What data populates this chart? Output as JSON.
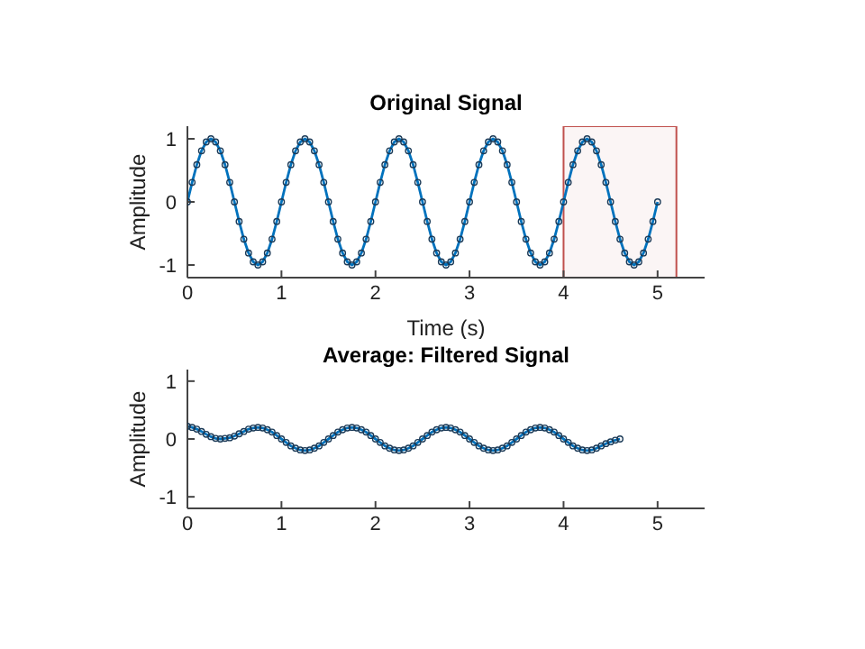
{
  "chart_data": [
    {
      "type": "line",
      "title": "Original Signal",
      "xlabel": "Time (s)",
      "ylabel": "Amplitude",
      "marker": "circle",
      "line_style": "solid",
      "x": [
        0,
        0.05,
        0.1,
        0.15,
        0.2,
        0.25,
        0.3,
        0.35,
        0.4,
        0.45,
        0.5,
        0.55,
        0.6,
        0.65,
        0.7,
        0.75,
        0.8,
        0.85,
        0.9,
        0.95,
        1,
        1.05,
        1.1,
        1.15,
        1.2,
        1.25,
        1.3,
        1.35,
        1.4,
        1.45,
        1.5,
        1.55,
        1.6,
        1.65,
        1.7,
        1.75,
        1.8,
        1.85,
        1.9,
        1.95,
        2,
        2.05,
        2.1,
        2.15,
        2.2,
        2.25,
        2.3,
        2.35,
        2.4,
        2.45,
        2.5,
        2.55,
        2.6,
        2.65,
        2.7,
        2.75,
        2.8,
        2.85,
        2.9,
        2.95,
        3,
        3.05,
        3.1,
        3.15,
        3.2,
        3.25,
        3.3,
        3.35,
        3.4,
        3.45,
        3.5,
        3.55,
        3.6,
        3.65,
        3.7,
        3.75,
        3.8,
        3.85,
        3.9,
        3.95,
        4,
        4.05,
        4.1,
        4.15,
        4.2,
        4.25,
        4.3,
        4.35,
        4.4,
        4.45,
        4.5,
        4.55,
        4.6,
        4.65,
        4.7,
        4.75,
        4.8,
        4.85,
        4.9,
        4.95,
        5
      ],
      "series": [
        {
          "color": "#0072bd",
          "values": [
            0,
            0.31,
            0.59,
            0.81,
            0.95,
            1,
            0.95,
            0.81,
            0.59,
            0.31,
            0,
            -0.31,
            -0.59,
            -0.81,
            -0.95,
            -1,
            -0.95,
            -0.81,
            -0.59,
            -0.31,
            0,
            0.31,
            0.59,
            0.81,
            0.95,
            1,
            0.95,
            0.81,
            0.59,
            0.31,
            0,
            -0.31,
            -0.59,
            -0.81,
            -0.95,
            -1,
            -0.95,
            -0.81,
            -0.59,
            -0.31,
            0,
            0.31,
            0.59,
            0.81,
            0.95,
            1,
            0.95,
            0.81,
            0.59,
            0.31,
            0,
            -0.31,
            -0.59,
            -0.81,
            -0.95,
            -1,
            -0.95,
            -0.81,
            -0.59,
            -0.31,
            0,
            0.31,
            0.59,
            0.81,
            0.95,
            1,
            0.95,
            0.81,
            0.59,
            0.31,
            0,
            -0.31,
            -0.59,
            -0.81,
            -0.95,
            -1,
            -0.95,
            -0.81,
            -0.59,
            -0.31,
            0,
            0.31,
            0.59,
            0.81,
            0.95,
            1,
            0.95,
            0.81,
            0.59,
            0.31,
            0,
            -0.31,
            -0.59,
            -0.81,
            -0.95,
            -1,
            -0.95,
            -0.81,
            -0.59,
            -0.31,
            0
          ]
        }
      ],
      "xlim": [
        0,
        5.5
      ],
      "xticks": [
        0,
        1,
        2,
        3,
        4,
        5
      ],
      "ylim": [
        -1.2,
        1.2
      ],
      "yticks": [
        -1,
        0,
        1
      ],
      "bands": [
        {
          "axis": "x",
          "from": 4,
          "to": 5.2,
          "color": "#c0504d"
        }
      ]
    },
    {
      "type": "line",
      "title": "Average: Filtered Signal",
      "ylabel": "Amplitude",
      "marker": "circle",
      "line_style": "solid",
      "x": [
        0,
        0.05,
        0.1,
        0.15,
        0.2,
        0.25,
        0.3,
        0.35,
        0.4,
        0.45,
        0.5,
        0.55,
        0.6,
        0.65,
        0.7,
        0.75,
        0.8,
        0.85,
        0.9,
        0.95,
        1,
        1.05,
        1.1,
        1.15,
        1.2,
        1.25,
        1.3,
        1.35,
        1.4,
        1.45,
        1.5,
        1.55,
        1.6,
        1.65,
        1.7,
        1.75,
        1.8,
        1.85,
        1.9,
        1.95,
        2,
        2.05,
        2.1,
        2.15,
        2.2,
        2.25,
        2.3,
        2.35,
        2.4,
        2.45,
        2.5,
        2.55,
        2.6,
        2.65,
        2.7,
        2.75,
        2.8,
        2.85,
        2.9,
        2.95,
        3,
        3.05,
        3.1,
        3.15,
        3.2,
        3.25,
        3.3,
        3.35,
        3.4,
        3.45,
        3.5,
        3.55,
        3.6,
        3.65,
        3.7,
        3.75,
        3.8,
        3.85,
        3.9,
        3.95,
        4,
        4.05,
        4.1,
        4.15,
        4.2,
        4.25,
        4.3,
        4.35,
        4.4,
        4.45,
        4.5,
        4.55,
        4.6
      ],
      "series": [
        {
          "color": "#0072bd",
          "values": [
            0.22,
            0.2,
            0.17,
            0.13,
            0.08,
            0.04,
            0.01,
            0,
            0.01,
            0.02,
            0.05,
            0.09,
            0.13,
            0.17,
            0.19,
            0.2,
            0.19,
            0.16,
            0.12,
            0.06,
            0,
            -0.06,
            -0.12,
            -0.16,
            -0.19,
            -0.2,
            -0.19,
            -0.16,
            -0.12,
            -0.06,
            0,
            0.06,
            0.12,
            0.16,
            0.19,
            0.2,
            0.19,
            0.16,
            0.12,
            0.06,
            0,
            -0.06,
            -0.12,
            -0.16,
            -0.19,
            -0.2,
            -0.19,
            -0.16,
            -0.12,
            -0.06,
            0,
            0.06,
            0.12,
            0.16,
            0.19,
            0.2,
            0.19,
            0.16,
            0.12,
            0.06,
            0,
            -0.06,
            -0.12,
            -0.16,
            -0.19,
            -0.2,
            -0.19,
            -0.16,
            -0.12,
            -0.06,
            0,
            0.06,
            0.12,
            0.16,
            0.19,
            0.2,
            0.19,
            0.16,
            0.12,
            0.06,
            0,
            -0.06,
            -0.12,
            -0.16,
            -0.19,
            -0.2,
            -0.19,
            -0.16,
            -0.12,
            -0.08,
            -0.05,
            -0.02,
            0
          ]
        }
      ],
      "xlim": [
        0,
        5.5
      ],
      "xticks": [
        0,
        1,
        2,
        3,
        4,
        5
      ],
      "ylim": [
        -1.2,
        1.2
      ],
      "yticks": [
        -1,
        0,
        1
      ]
    }
  ]
}
